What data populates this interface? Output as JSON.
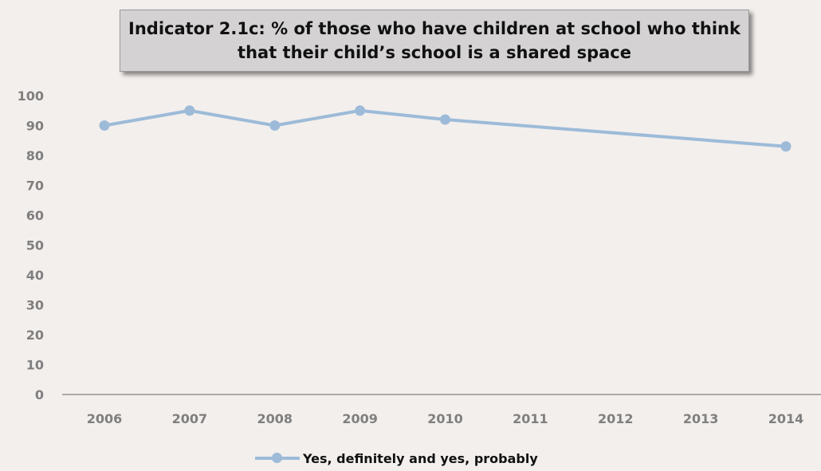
{
  "chart_data": {
    "type": "line",
    "title": "Indicator 2.1c: % of those who have children at school who think that their child’s school is a shared space",
    "categories": [
      "2006",
      "2007",
      "2008",
      "2009",
      "2010",
      "2011",
      "2012",
      "2013",
      "2014"
    ],
    "series": [
      {
        "name": "Yes, definitely and yes, probably",
        "x": [
          "2006",
          "2007",
          "2008",
          "2009",
          "2010",
          "2014"
        ],
        "values": [
          90,
          95,
          90,
          95,
          92,
          83
        ]
      }
    ],
    "ylim": [
      0,
      100
    ],
    "yticks": [
      "0",
      "10",
      "20",
      "30",
      "40",
      "50",
      "60",
      "70",
      "80",
      "90",
      "100"
    ],
    "xlabel": "",
    "ylabel": "",
    "grid": false,
    "legend_position": "bottom",
    "colors": {
      "series": "#9dbbd8",
      "axis": "#7f7f7f",
      "tick_text": "#7f7f7f",
      "title_box": "#d4d2d2",
      "background": "#f3efed"
    }
  }
}
